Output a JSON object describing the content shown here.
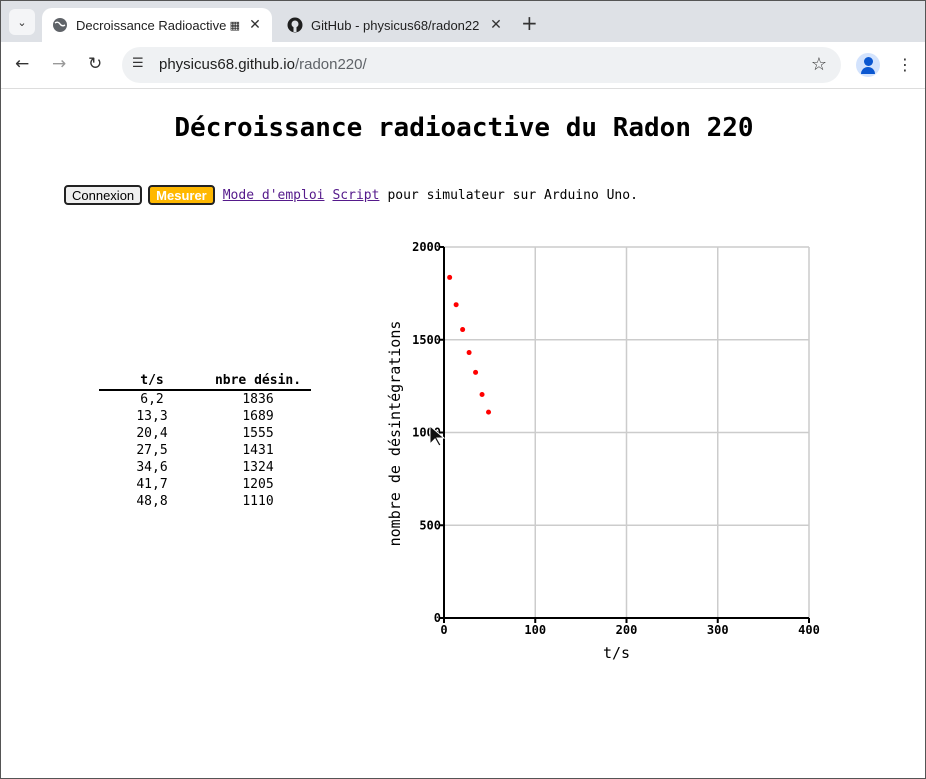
{
  "browser": {
    "tabs": [
      {
        "title": "Decroissance Radioactive",
        "active": true
      },
      {
        "title": "GitHub - physicus68/radon22",
        "active": false
      }
    ],
    "url_host": "physicus68.github.io",
    "url_path": "/radon220/"
  },
  "page": {
    "title": "Décroissance radioactive du Radon 220",
    "connect_label": "Connexion",
    "measure_label": "Mesurer",
    "manual_link": "Mode d'emploi",
    "script_link": "Script",
    "trailing_text": "pour simulateur sur Arduino Uno."
  },
  "table": {
    "headers": [
      "t/s",
      "nbre désin."
    ],
    "rows": [
      [
        "6,2",
        "1836"
      ],
      [
        "13,3",
        "1689"
      ],
      [
        "20,4",
        "1555"
      ],
      [
        "27,5",
        "1431"
      ],
      [
        "34,6",
        "1324"
      ],
      [
        "41,7",
        "1205"
      ],
      [
        "48,8",
        "1110"
      ]
    ]
  },
  "colors": {
    "measure_button": "#ffb800",
    "points": "#ff0000",
    "link": "#551a8b"
  },
  "chart_data": {
    "type": "scatter",
    "title": "",
    "xlabel": "t/s",
    "ylabel": "nombre de désintégrations",
    "xlim": [
      0,
      400
    ],
    "ylim": [
      0,
      2000
    ],
    "xticks": [
      0,
      100,
      200,
      300,
      400
    ],
    "yticks": [
      0,
      500,
      1000,
      1500,
      2000
    ],
    "grid": true,
    "x": [
      6.2,
      13.3,
      20.4,
      27.5,
      34.6,
      41.7,
      48.8
    ],
    "y": [
      1836,
      1689,
      1555,
      1431,
      1324,
      1205,
      1110
    ]
  }
}
